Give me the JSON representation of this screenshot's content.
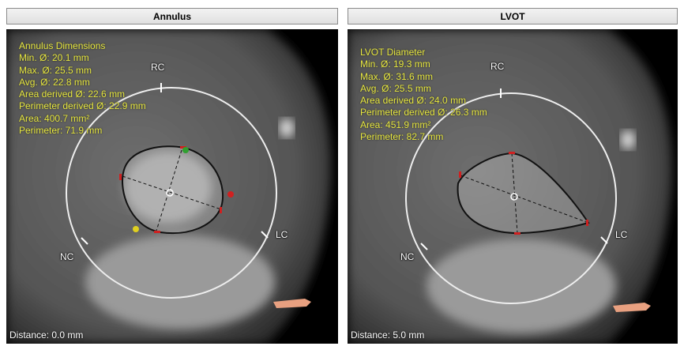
{
  "panels": [
    {
      "title": "Annulus",
      "measurements": {
        "heading": "Annulus Dimensions",
        "lines": [
          "Min. Ø: 20.1 mm",
          "Max. Ø: 25.5 mm",
          "Avg. Ø: 22.8 mm",
          "Area derived Ø: 22.6 mm",
          "Perimeter derived Ø: 22.9 mm",
          "Area: 400.7 mm²",
          "Perimeter: 71.9 mm"
        ]
      },
      "cusps": {
        "rc": "RC",
        "lc": "LC",
        "nc": "NC"
      },
      "distance": "Distance: 0.0 mm"
    },
    {
      "title": "LVOT",
      "measurements": {
        "heading": "LVOT Diameter",
        "lines": [
          "Min. Ø: 19.3 mm",
          "Max. Ø: 31.6 mm",
          "Avg. Ø: 25.5 mm",
          "Area derived Ø: 24.0 mm",
          "Perimeter derived Ø: 26.3 mm",
          "Area: 451.9 mm²",
          "Perimeter: 82.7 mm"
        ]
      },
      "cusps": {
        "rc": "RC",
        "lc": "LC",
        "nc": "NC"
      },
      "distance": "Distance: 5.0 mm"
    }
  ],
  "colors": {
    "measurement_text": "#e8e840",
    "marker_red": "#d02020",
    "marker_green": "#30a030",
    "marker_yellow": "#e0d020"
  }
}
